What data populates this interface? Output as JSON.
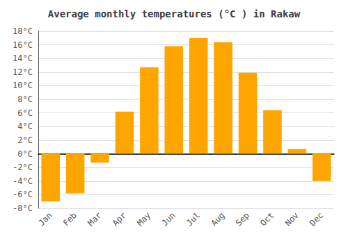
{
  "chart_data": {
    "type": "bar",
    "title": "Average monthly temperatures (°C ) in Rakaw",
    "categories": [
      "Jan",
      "Feb",
      "Mar",
      "Apr",
      "May",
      "Jun",
      "Jul",
      "Aug",
      "Sep",
      "Oct",
      "Nov",
      "Dec"
    ],
    "values": [
      -7.0,
      -5.8,
      -1.3,
      6.2,
      12.7,
      15.8,
      17.0,
      16.4,
      11.9,
      6.4,
      0.7,
      -4.0
    ],
    "color": "#FFA500",
    "ylim": [
      -8,
      18
    ],
    "yticks": [
      {
        "value": -8,
        "label": "-8°C"
      },
      {
        "value": -6,
        "label": "-6°C"
      },
      {
        "value": -4,
        "label": "-4°C"
      },
      {
        "value": -2,
        "label": "-2°C"
      },
      {
        "value": 0,
        "label": "0°C"
      },
      {
        "value": 2,
        "label": "2°C"
      },
      {
        "value": 4,
        "label": "4°C"
      },
      {
        "value": 6,
        "label": "6°C"
      },
      {
        "value": 8,
        "label": "8°C"
      },
      {
        "value": 10,
        "label": "10°C"
      },
      {
        "value": 12,
        "label": "12°C"
      },
      {
        "value": 14,
        "label": "14°C"
      },
      {
        "value": 16,
        "label": "16°C"
      },
      {
        "value": 18,
        "label": "18°C"
      }
    ],
    "grid": true
  }
}
